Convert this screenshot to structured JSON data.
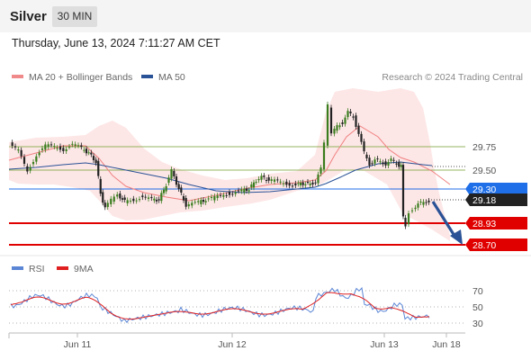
{
  "header": {
    "instrument": "Silver",
    "timeframe": "30 MIN"
  },
  "timestamp": "Thursday, June 13, 2024 7:11:27 AM CET",
  "legend": {
    "bollinger": {
      "label": "MA 20 + Bollinger Bands",
      "color": "#f08a8a"
    },
    "ma50": {
      "label": "MA 50",
      "color": "#2a5296"
    }
  },
  "credit": "Research © 2024 Trading Central",
  "rsi_legend": {
    "rsi": {
      "label": "RSI",
      "color": "#5b86d6"
    },
    "ma9": {
      "label": "9MA",
      "color": "#e02020"
    }
  },
  "price_levels": [
    {
      "label": "29.75",
      "kind": "resistance",
      "color": "#7aa53a"
    },
    {
      "label": "29.50",
      "kind": "resistance",
      "color": "#7aa53a"
    },
    {
      "label": "29.30",
      "kind": "pivot",
      "color": "#1f6fe8"
    },
    {
      "label": "29.18",
      "kind": "last-price",
      "color": "#222222"
    },
    {
      "label": "28.93",
      "kind": "support",
      "color": "#e00000"
    },
    {
      "label": "28.70",
      "kind": "support",
      "color": "#e00000"
    }
  ],
  "rsi_levels": [
    "70",
    "50",
    "30"
  ],
  "x_axis": [
    "Jun 11",
    "Jun 12",
    "Jun 13",
    "Jun 18"
  ],
  "forecast_arrow": {
    "direction": "down",
    "color": "#2a5296"
  }
}
